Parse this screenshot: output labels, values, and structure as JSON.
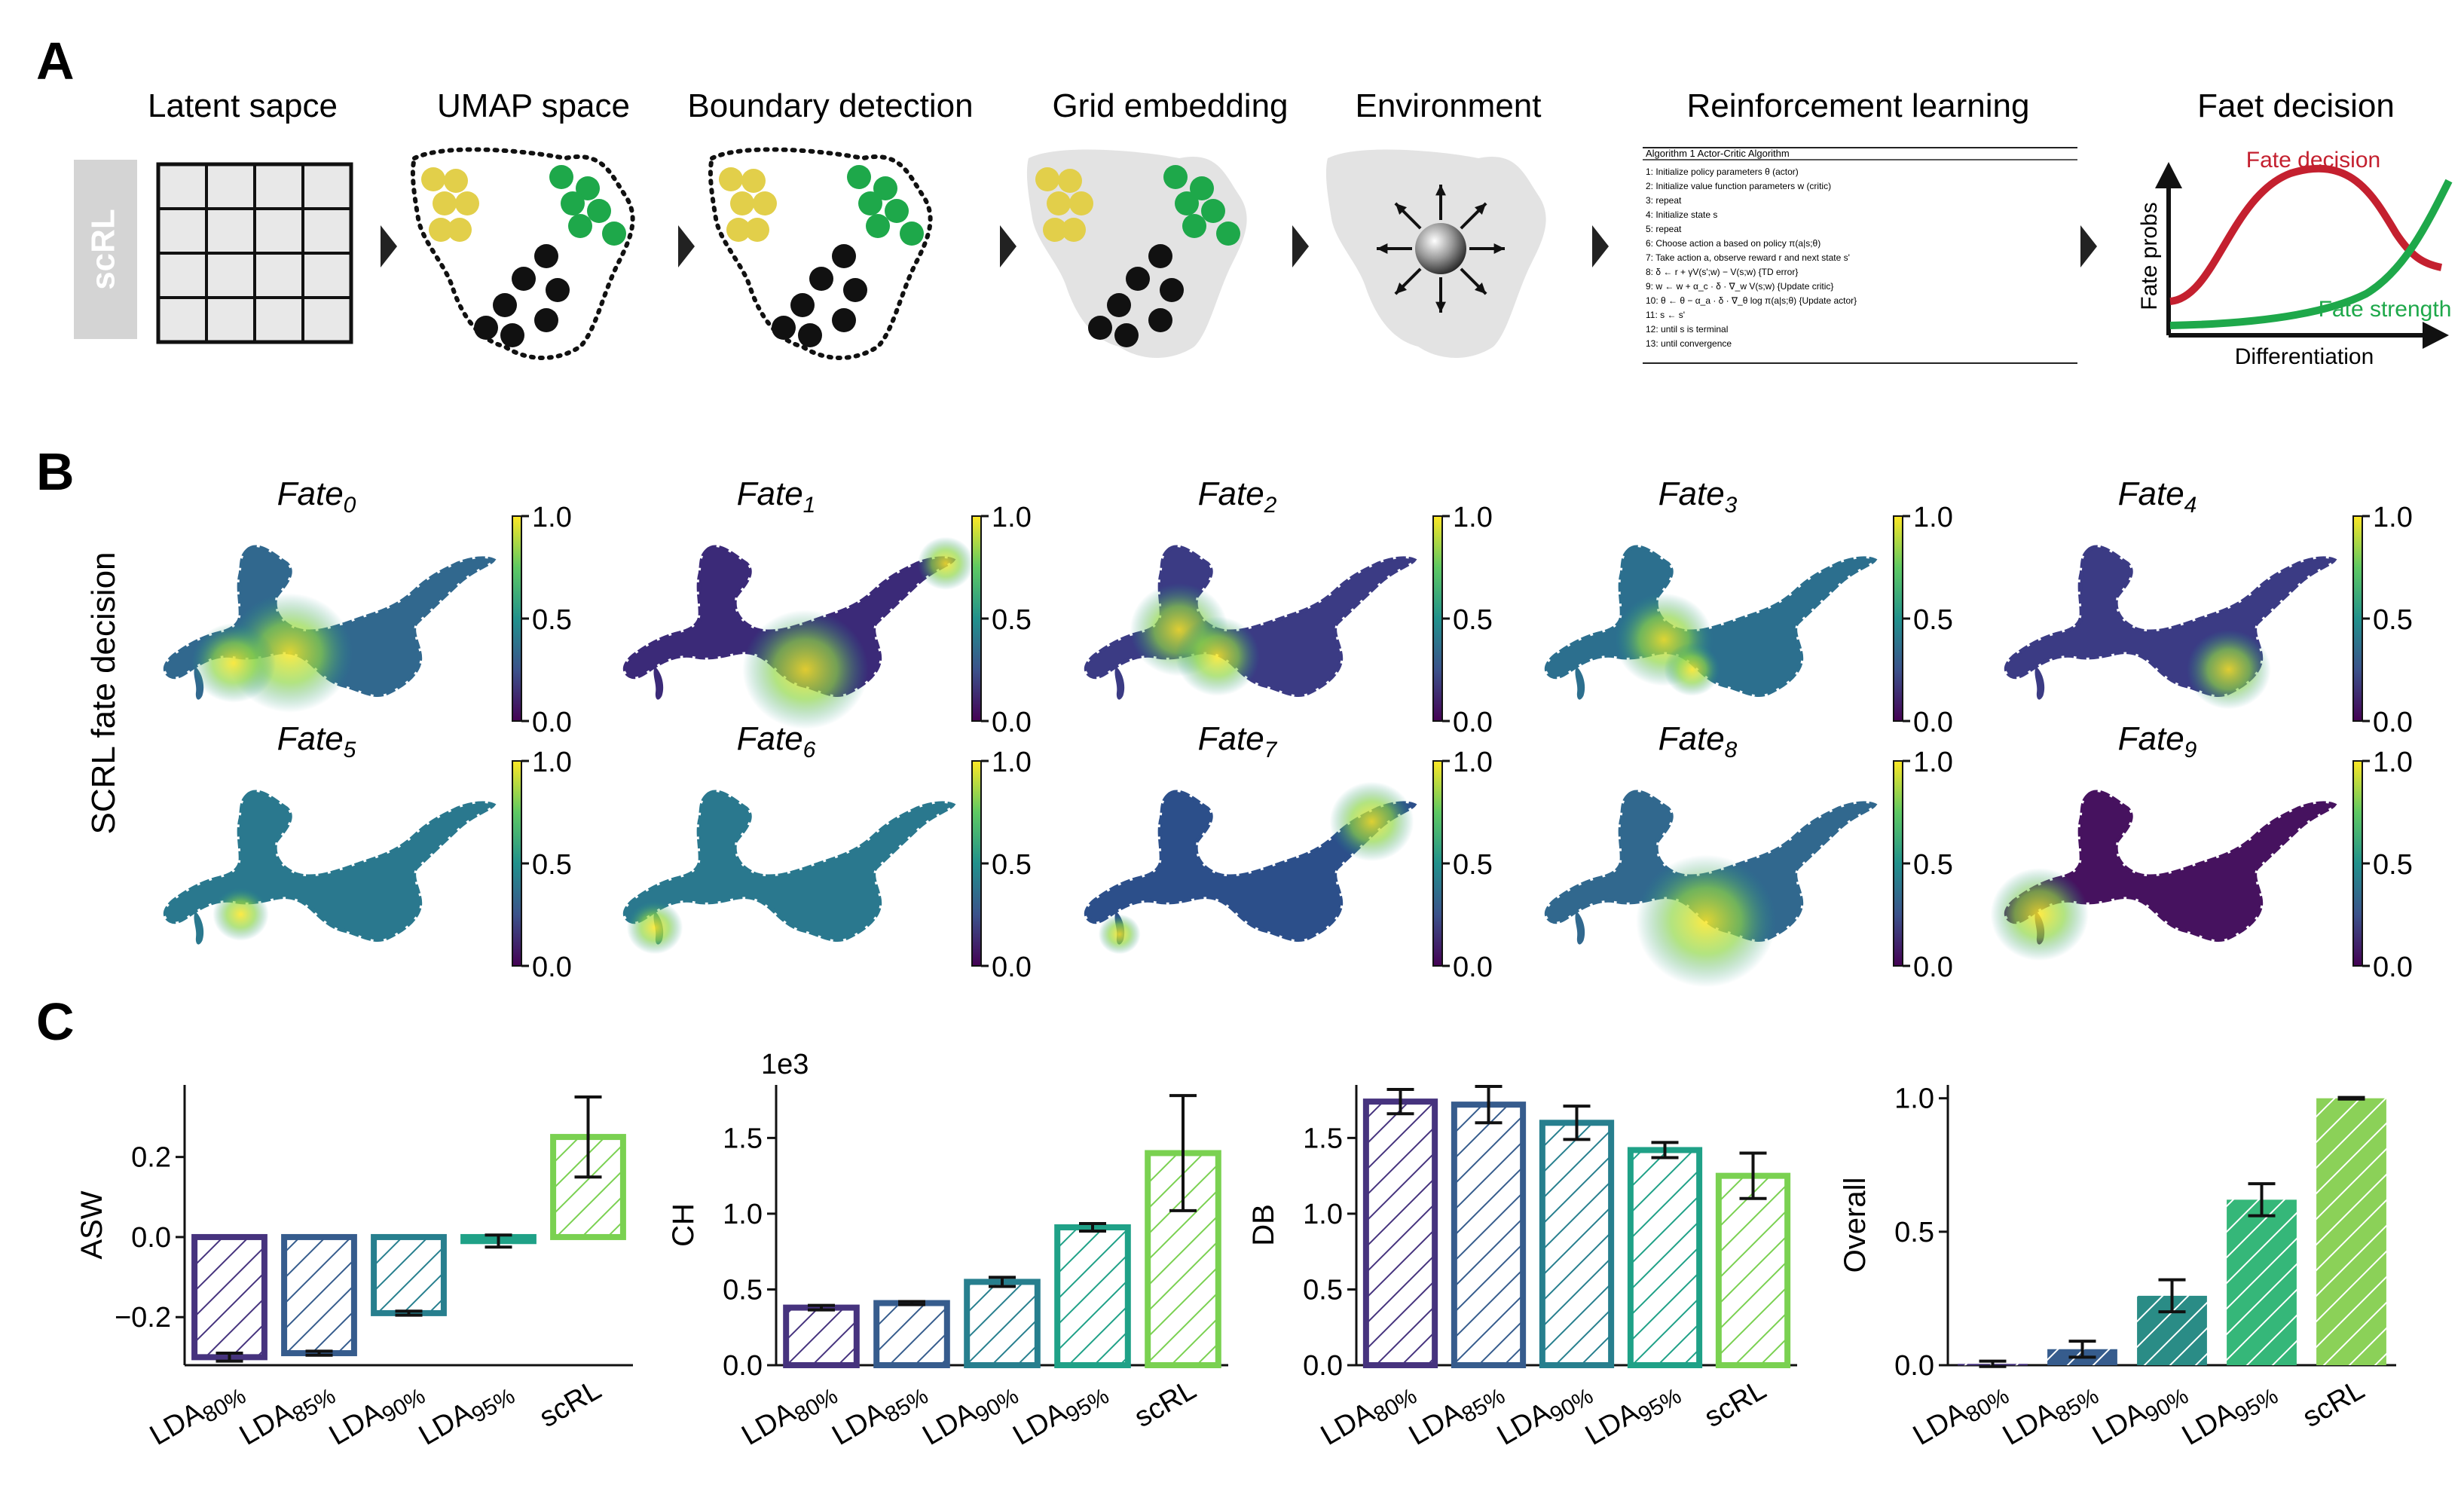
{
  "panels": {
    "a": "A",
    "b": "B",
    "c": "C"
  },
  "workflow": {
    "steps": [
      "Latent sapce",
      "UMAP space",
      "Boundary detection",
      "Grid embedding",
      "Environment",
      "Reinforcement learning",
      "Faet decision"
    ],
    "sidebar_tag": "scRL",
    "algorithm": {
      "title": "Algorithm 1 Actor-Critic Algorithm",
      "lines": [
        "1: Initialize policy parameters θ (actor)",
        "2: Initialize value function parameters w (critic)",
        "3: repeat",
        "4:   Initialize state s",
        "5:   repeat",
        "6:     Choose action a based on policy π(a|s;θ)",
        "7:     Take action a, observe reward r and next state s'",
        "8:     δ ← r + γV(s';w) − V(s;w) {TD error}",
        "9:     w ← w + α_c · δ · ∇_w V(s;w) {Update critic}",
        "10:    θ ← θ − α_a · δ · ∇_θ log π(a|s;θ) {Update actor}",
        "11:    s ← s'",
        "12:  until s is terminal",
        "13: until convergence"
      ]
    },
    "fate_plot": {
      "ylabel": "Fate probs",
      "xlabel": "Differentiation",
      "decision_label": "Fate decision",
      "strength_label": "Fate strength"
    }
  },
  "umap": {
    "ylabel": "SCRL fate decision",
    "fates": [
      {
        "name": "Fate",
        "sub": "0"
      },
      {
        "name": "Fate",
        "sub": "1"
      },
      {
        "name": "Fate",
        "sub": "2"
      },
      {
        "name": "Fate",
        "sub": "3"
      },
      {
        "name": "Fate",
        "sub": "4"
      },
      {
        "name": "Fate",
        "sub": "5"
      },
      {
        "name": "Fate",
        "sub": "6"
      },
      {
        "name": "Fate",
        "sub": "7"
      },
      {
        "name": "Fate",
        "sub": "8"
      },
      {
        "name": "Fate",
        "sub": "9"
      }
    ],
    "colorbar_ticks": [
      "1.0",
      "0.5",
      "0.0"
    ]
  },
  "colors": {
    "lda80": "#46337e",
    "lda85": "#365c8d",
    "lda90": "#277f8e",
    "lda95": "#1fa187",
    "scrl": "#7ad151",
    "fill90": "#2a8c86",
    "fill95": "#35b779",
    "fill_scrl": "#8bd158",
    "yellow": "#e2cf4a",
    "green": "#1ea84a",
    "red": "#c4202f",
    "curve_green": "#1ea84a"
  },
  "chart_data": [
    {
      "type": "bar",
      "title": "",
      "ylabel": "ASW",
      "categories": [
        "LDA80%",
        "LDA85%",
        "LDA90%",
        "LDA95%",
        "scRL"
      ],
      "values": [
        -0.3,
        -0.29,
        -0.19,
        -0.01,
        0.25
      ],
      "errors": [
        0.01,
        0.005,
        0.005,
        0.015,
        0.1
      ],
      "ylim": [
        -0.32,
        0.38
      ],
      "yticks": [
        "0.2",
        "0.0",
        "−0.2"
      ],
      "ytick_values": [
        0.2,
        0.0,
        -0.2
      ],
      "offset_label": ""
    },
    {
      "type": "bar",
      "title": "",
      "ylabel": "CH",
      "categories": [
        "LDA80%",
        "LDA85%",
        "LDA90%",
        "LDA95%",
        "scRL"
      ],
      "values": [
        0.38,
        0.41,
        0.55,
        0.91,
        1.4
      ],
      "errors": [
        0.015,
        0.01,
        0.03,
        0.025,
        0.38
      ],
      "ylim": [
        0.0,
        1.85
      ],
      "yticks": [
        "0.0",
        "0.5",
        "1.0",
        "1.5"
      ],
      "ytick_values": [
        0.0,
        0.5,
        1.0,
        1.5
      ],
      "offset_label": "1e3"
    },
    {
      "type": "bar",
      "title": "",
      "ylabel": "DB",
      "categories": [
        "LDA80%",
        "LDA85%",
        "LDA90%",
        "LDA95%",
        "scRL"
      ],
      "values": [
        1.74,
        1.72,
        1.6,
        1.42,
        1.25
      ],
      "errors": [
        0.08,
        0.12,
        0.11,
        0.05,
        0.15
      ],
      "ylim": [
        0.0,
        1.85
      ],
      "yticks": [
        "0.0",
        "0.5",
        "1.0",
        "1.5"
      ],
      "ytick_values": [
        0.0,
        0.5,
        1.0,
        1.5
      ],
      "offset_label": ""
    },
    {
      "type": "bar",
      "title": "",
      "ylabel": "Overall",
      "categories": [
        "LDA80%",
        "LDA85%",
        "LDA90%",
        "LDA95%",
        "scRL"
      ],
      "values": [
        0.005,
        0.06,
        0.26,
        0.62,
        1.0
      ],
      "errors": [
        0.01,
        0.03,
        0.06,
        0.06,
        0.003
      ],
      "ylim": [
        0.0,
        1.05
      ],
      "yticks": [
        "0.0",
        "0.5",
        "1.0"
      ],
      "ytick_values": [
        0.0,
        0.5,
        1.0
      ],
      "offset_label": ""
    }
  ]
}
